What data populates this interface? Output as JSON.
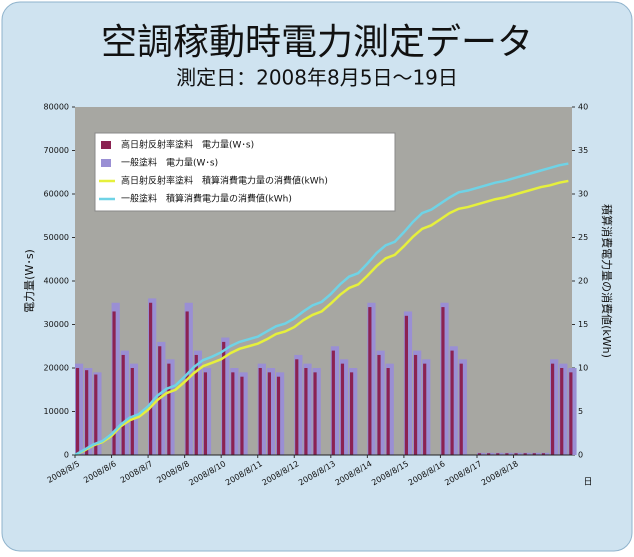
{
  "chart_data": {
    "type": "bar",
    "title": "空調稼動時電力測定データ",
    "subtitle": "測定日：2008年8月5日～19日",
    "y_label": "電力量(W･s)",
    "y2_label": "積算消費電力量の消費値(kWh)",
    "x_label": "日",
    "x": [
      0,
      0.25,
      0.5,
      0.75,
      1,
      1.25,
      1.5,
      1.75,
      2,
      2.25,
      2.5,
      2.75,
      3,
      3.25,
      3.5,
      3.75,
      4,
      4.25,
      4.5,
      4.75,
      5,
      5.25,
      5.5,
      5.75,
      6,
      6.25,
      6.5,
      6.75,
      7,
      7.25,
      7.5,
      7.75,
      8,
      8.25,
      8.5,
      8.75,
      9,
      9.25,
      9.5,
      9.75,
      10,
      10.25,
      10.5,
      10.75,
      11,
      11.25,
      11.5,
      11.75,
      12,
      12.25,
      12.5,
      12.75,
      13,
      13.25,
      13.5
    ],
    "xlim": [
      0,
      13.6
    ],
    "xticks": [
      {
        "value": 0,
        "label": "2008/8/5"
      },
      {
        "value": 1,
        "label": "2008/8/6"
      },
      {
        "value": 2,
        "label": "2008/8/7"
      },
      {
        "value": 3,
        "label": "2008/8/8"
      },
      {
        "value": 4,
        "label": "2008/8/10"
      },
      {
        "value": 5,
        "label": "2008/8/11"
      },
      {
        "value": 6,
        "label": "2008/8/12"
      },
      {
        "value": 7,
        "label": "2008/8/13"
      },
      {
        "value": 8,
        "label": "2008/8/14"
      },
      {
        "value": 9,
        "label": "2008/8/15"
      },
      {
        "value": 10,
        "label": "2008/8/16"
      },
      {
        "value": 11,
        "label": "2008/8/17"
      },
      {
        "value": 12,
        "label": "2008/8/18"
      }
    ],
    "ylim": [
      0,
      80000
    ],
    "yticks": [
      0,
      10000,
      20000,
      30000,
      40000,
      50000,
      60000,
      70000,
      80000
    ],
    "y2lim": [
      0,
      40
    ],
    "y2ticks": [
      0,
      5,
      10,
      15,
      20,
      25,
      30,
      35,
      40
    ],
    "legend": "upper left",
    "series": [
      {
        "name": "高日射反射率塗料　電力量(W･s)",
        "color": "#8b2252",
        "values": [
          20000,
          19500,
          18500,
          0,
          33000,
          23000,
          20000,
          0,
          35000,
          25000,
          21000,
          0,
          33000,
          23000,
          19000,
          0,
          26000,
          19000,
          18000,
          0,
          20000,
          19000,
          18000,
          0,
          22000,
          20000,
          19000,
          0,
          24000,
          21000,
          19000,
          0,
          34000,
          23000,
          20000,
          0,
          32000,
          23000,
          21000,
          0,
          34000,
          24000,
          21000,
          0,
          400,
          400,
          400,
          400,
          400,
          400,
          400,
          400,
          21000,
          20000,
          19000
        ]
      },
      {
        "name": "一般塗料　電力量(W･s)",
        "color": "#9a8fd4",
        "values": [
          21000,
          20000,
          19000,
          0,
          35000,
          24000,
          21000,
          0,
          36000,
          26000,
          22000,
          0,
          35000,
          24000,
          20000,
          0,
          27000,
          20000,
          19000,
          0,
          21000,
          20000,
          19000,
          0,
          23000,
          21000,
          20000,
          0,
          25000,
          22000,
          20000,
          0,
          35000,
          24000,
          21000,
          0,
          33000,
          24000,
          22000,
          0,
          35000,
          25000,
          22000,
          0,
          500,
          500,
          500,
          500,
          500,
          500,
          500,
          500,
          22000,
          21000,
          20000
        ]
      },
      {
        "name": "高日射反射率塗料　積算消費電力量の消費値(kWh)",
        "color": "#e6f03c",
        "type": "line",
        "axis": "y2",
        "values": [
          0,
          0.5,
          1.1,
          1.5,
          2.2,
          3.3,
          4.0,
          4.4,
          5.2,
          6.3,
          7.1,
          7.5,
          8.4,
          9.4,
          10.2,
          10.6,
          11.0,
          11.7,
          12.2,
          12.5,
          12.8,
          13.3,
          13.9,
          14.2,
          14.7,
          15.5,
          16.1,
          16.5,
          17.4,
          18.4,
          19.2,
          19.6,
          20.6,
          21.7,
          22.6,
          23.0,
          24.0,
          25.1,
          26.0,
          26.4,
          27.1,
          27.8,
          28.3,
          28.5,
          28.8,
          29.1,
          29.4,
          29.6,
          29.9,
          30.2,
          30.5,
          30.8,
          31.0,
          31.3,
          31.5
        ]
      },
      {
        "name": "一般塗料　積算消費電力量の消費値(kWh)",
        "color": "#6fd3e6",
        "type": "line",
        "axis": "y2",
        "values": [
          0,
          0.6,
          1.2,
          1.6,
          2.4,
          3.5,
          4.3,
          4.7,
          5.6,
          6.8,
          7.6,
          8.0,
          9.0,
          10.1,
          10.9,
          11.3,
          11.8,
          12.5,
          13.0,
          13.3,
          13.6,
          14.2,
          14.8,
          15.1,
          15.7,
          16.5,
          17.2,
          17.6,
          18.5,
          19.6,
          20.5,
          20.9,
          22.0,
          23.2,
          24.1,
          24.5,
          25.6,
          26.8,
          27.8,
          28.2,
          28.9,
          29.6,
          30.2,
          30.4,
          30.7,
          31.0,
          31.3,
          31.5,
          31.8,
          32.1,
          32.4,
          32.7,
          33.0,
          33.3,
          33.5
        ]
      }
    ]
  }
}
